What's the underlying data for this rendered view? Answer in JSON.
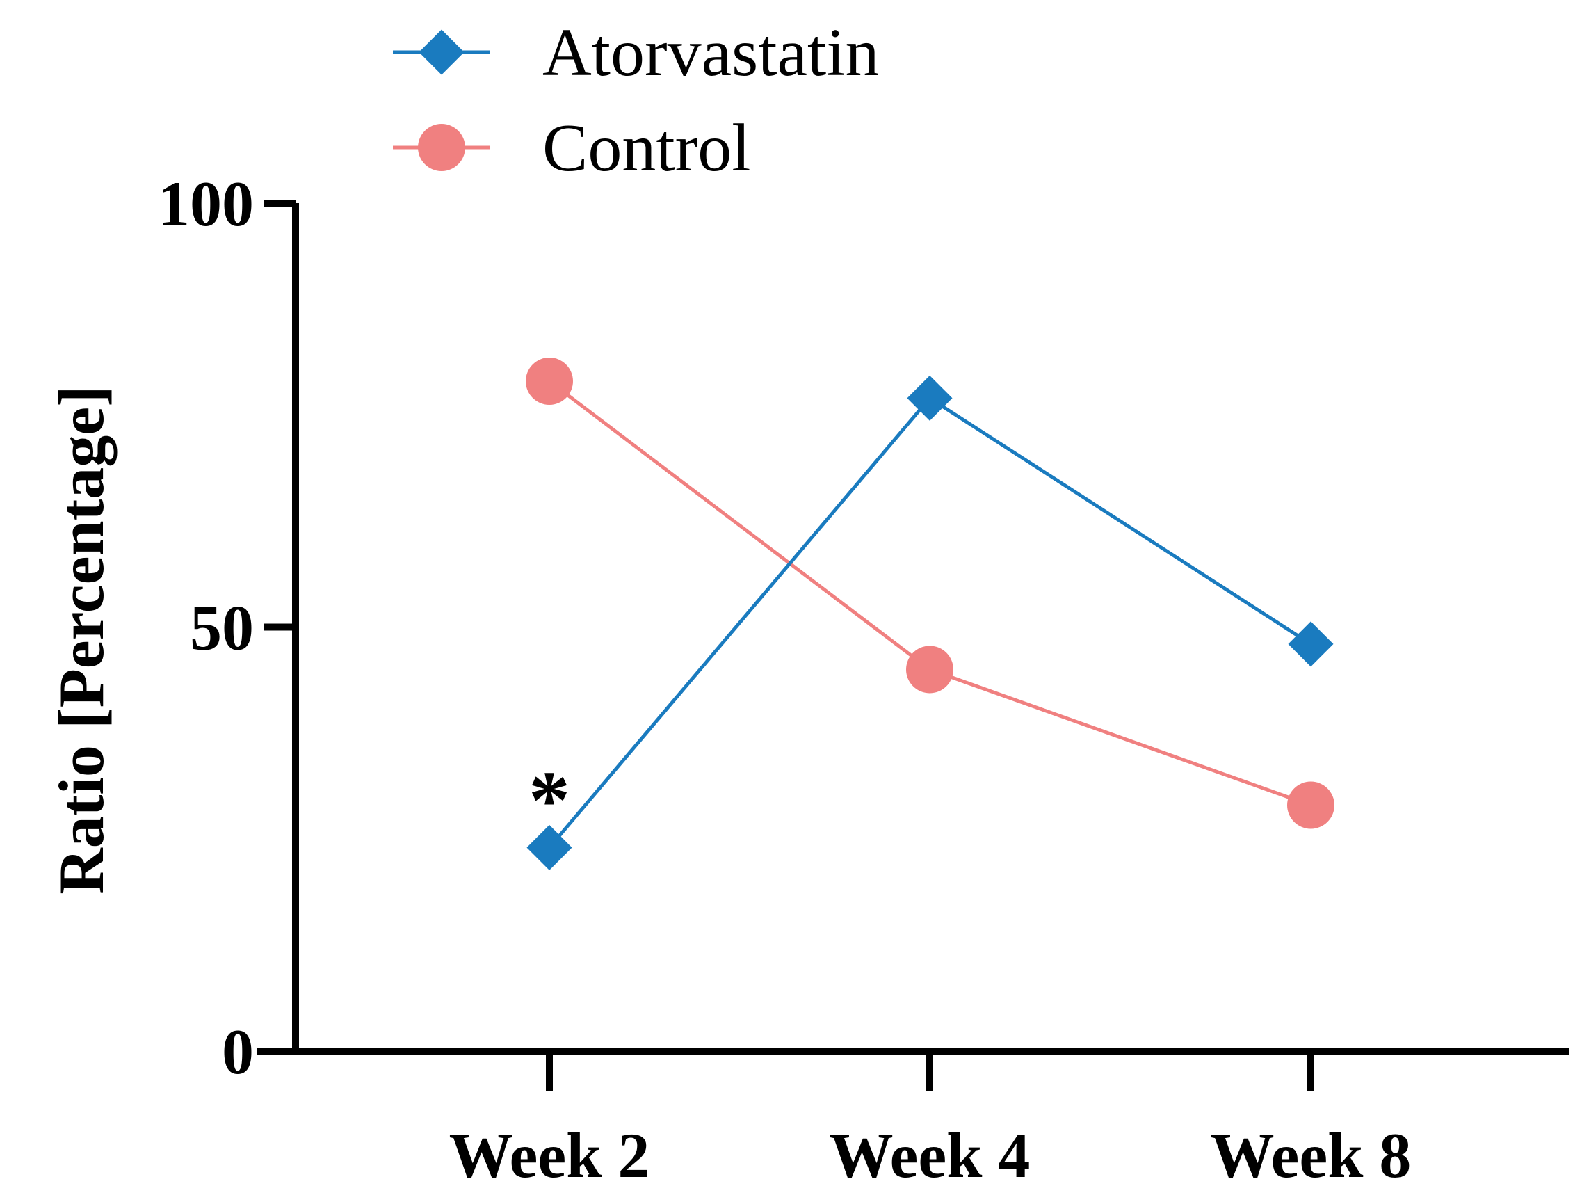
{
  "chart_data": {
    "type": "line",
    "title": "",
    "xlabel": "",
    "ylabel": "Ratio [Percentage]",
    "categories": [
      "Week 2",
      "Week 4",
      "Week 8"
    ],
    "ylim": [
      0,
      100
    ],
    "yticks": [
      0,
      50,
      100
    ],
    "grid": false,
    "legend_position": "top-left",
    "series": [
      {
        "name": "Atorvastatin",
        "values": [
          24,
          77,
          48
        ],
        "color": "#1a7bbf",
        "marker": "diamond"
      },
      {
        "name": "Control",
        "values": [
          79,
          45,
          29
        ],
        "color": "#f08080",
        "marker": "circle"
      }
    ],
    "annotations": [
      {
        "text": "*",
        "category": "Week 2",
        "series": "Atorvastatin"
      }
    ]
  }
}
